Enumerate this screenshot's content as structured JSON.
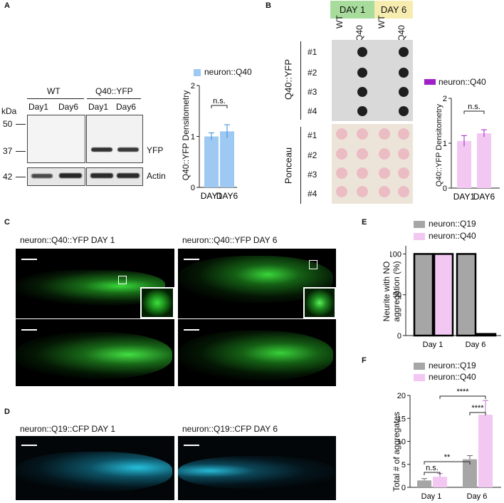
{
  "panels": [
    "A",
    "B",
    "C",
    "D",
    "E",
    "F"
  ],
  "panelA": {
    "kda_label": "kDa",
    "markers": [
      "50",
      "37",
      "42"
    ],
    "groups": [
      "WT",
      "Q40::YFP"
    ],
    "lanes": [
      "Day1",
      "Day6",
      "Day1",
      "Day6"
    ],
    "band_labels": [
      "YFP",
      "Actin"
    ],
    "chart": {
      "legend": "neuron::Q40",
      "ylabel": "Q40::YFP Densitometry",
      "categories": [
        "DAY1",
        "DAY6"
      ],
      "values": [
        1.0,
        1.1
      ],
      "errors": [
        0.07,
        0.13
      ],
      "yticks": [
        "0",
        "1",
        "2"
      ],
      "sig": "n.s."
    }
  },
  "panelB": {
    "headers": [
      "DAY 1",
      "DAY 6"
    ],
    "lanes": [
      "WT",
      "Q40",
      "WT",
      "Q40"
    ],
    "row_group_1": "Q40::YFP",
    "row_group_2": "Ponceau",
    "rows": [
      "#1",
      "#2",
      "#3",
      "#4"
    ],
    "chart": {
      "legend": "neuron::Q40",
      "ylabel": "Q40::YFP Densitometry",
      "categories": [
        "DAY1",
        "DAY6"
      ],
      "values": [
        1.05,
        1.22
      ],
      "errors": [
        0.12,
        0.08
      ],
      "yticks": [
        "0",
        "1",
        "2"
      ],
      "sig": "n.s."
    }
  },
  "panelC": {
    "captions": [
      "neuron::Q40::YFP DAY 1",
      "neuron::Q40::YFP DAY 6"
    ]
  },
  "panelD": {
    "captions": [
      "neuron::Q19::CFP DAY 1",
      "neuron::Q19::CFP DAY 6"
    ]
  },
  "chart_data": [
    {
      "type": "bar",
      "ylabel": "Neurite with NO aggregation (%)",
      "categories": [
        "Day 1",
        "Day 6"
      ],
      "series": [
        {
          "name": "neuron::Q19",
          "values": [
            100,
            100
          ]
        },
        {
          "name": "neuron::Q40",
          "values": [
            100,
            2
          ]
        }
      ],
      "yticks": [
        "0",
        "50",
        "100"
      ],
      "ylim": [
        0,
        110
      ]
    },
    {
      "type": "bar",
      "ylabel": "Total # of aggregates",
      "categories": [
        "Day 1",
        "Day 6"
      ],
      "series": [
        {
          "name": "neuron::Q19",
          "values": [
            1.5,
            6.1
          ],
          "errors": [
            0.4,
            0.8
          ]
        },
        {
          "name": "neuron::Q40",
          "values": [
            2.3,
            15.8
          ],
          "errors": [
            0.7,
            3.1
          ]
        }
      ],
      "yticks": [
        "0",
        "5",
        "10",
        "15",
        "20"
      ],
      "ylim": [
        0,
        20
      ],
      "annotations": [
        "n.s.",
        "**",
        "****",
        "****"
      ]
    }
  ],
  "colors": {
    "q19": "#a6a6a6",
    "q40_pink": "#f2c7f2",
    "q40_blue": "#9ec9f2",
    "q40_purple": "#a020c8",
    "yfp": "#2fd12f",
    "cfp": "#17b6d4",
    "day1_header": "#a8dc9c",
    "day6_header": "#f7ecb0"
  }
}
